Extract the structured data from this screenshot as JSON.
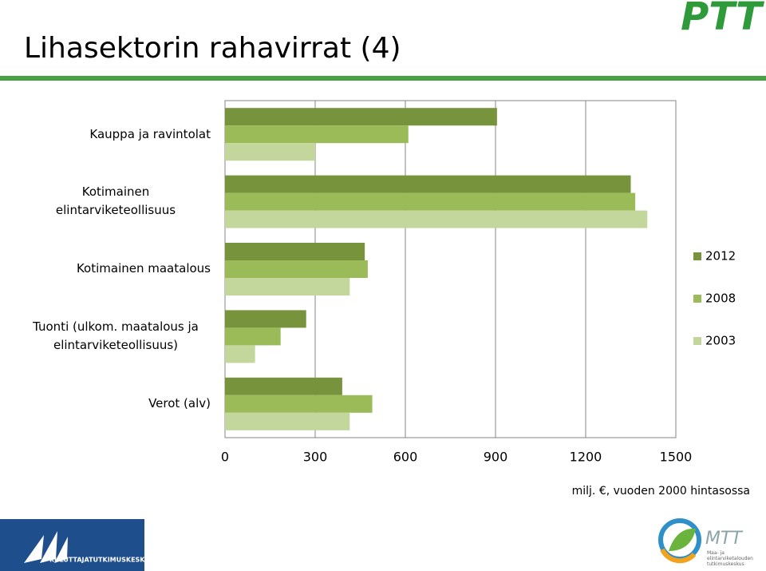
{
  "header": {
    "title": "Lihasektorin rahavirrat (4)"
  },
  "logos": {
    "top_right": "PTT",
    "bottom_left": "KULUTTAJATUTKIMUSKESKUS",
    "bottom_right": "MTT",
    "bottom_right_subtitle": "Maa- ja elintarviketalouden tutkimuskeskus"
  },
  "chart_data": {
    "type": "bar",
    "orientation": "horizontal",
    "categories": [
      "Kauppa ja ravintolat",
      "Kotimainen elintarviketeollisuus",
      "Kotimainen maatalous",
      "Tuonti (ulkom. maatalous ja elintarviketeollisuus)",
      "Verot (alv)"
    ],
    "series": [
      {
        "name": "2012",
        "color": "#77933c",
        "values": [
          905,
          1350,
          465,
          270,
          390
        ]
      },
      {
        "name": "2008",
        "color": "#9bbb59",
        "values": [
          610,
          1365,
          475,
          185,
          490
        ]
      },
      {
        "name": "2003",
        "color": "#c3d69b",
        "values": [
          300,
          1405,
          415,
          100,
          415
        ]
      }
    ],
    "xlim": [
      0,
      1500
    ],
    "xticks": [
      0,
      300,
      600,
      900,
      1200,
      1500
    ],
    "xlabel": "milj. €, vuoden 2000 hintasossa",
    "grid": true,
    "legend": "right"
  }
}
